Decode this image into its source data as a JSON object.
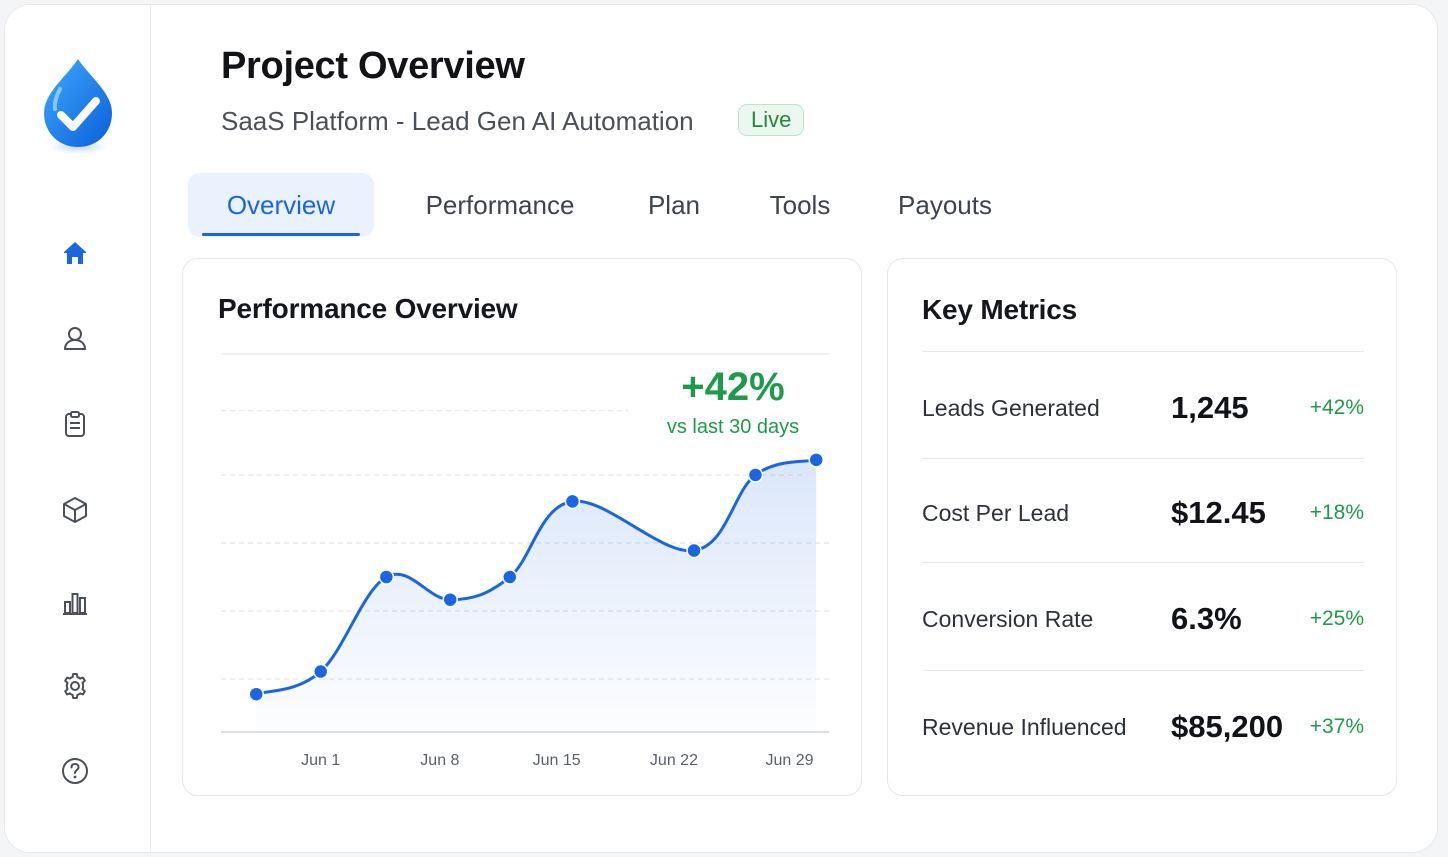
{
  "header": {
    "title": "Project Overview",
    "subtitle": "SaaS Platform - Lead Gen AI Automation",
    "status_badge": "Live"
  },
  "sidebar": {
    "items": [
      {
        "name": "home",
        "icon": "home-icon",
        "active": true
      },
      {
        "name": "profile",
        "icon": "user-icon",
        "active": false
      },
      {
        "name": "tasks",
        "icon": "clipboard-icon",
        "active": false
      },
      {
        "name": "products",
        "icon": "box-icon",
        "active": false
      },
      {
        "name": "analytics",
        "icon": "bar-chart-icon",
        "active": false
      },
      {
        "name": "settings",
        "icon": "gear-icon",
        "active": false
      },
      {
        "name": "help",
        "icon": "help-icon",
        "active": false
      }
    ]
  },
  "tabs": [
    {
      "label": "Overview",
      "active": true
    },
    {
      "label": "Performance",
      "active": false
    },
    {
      "label": "Plan",
      "active": false
    },
    {
      "label": "Tools",
      "active": false
    },
    {
      "label": "Payouts",
      "active": false
    }
  ],
  "performance_card": {
    "title": "Performance Overview",
    "delta_value": "+42%",
    "delta_caption": "vs last 30 days"
  },
  "chart_data": {
    "type": "area",
    "x": [
      "Jun 1 (start)",
      "Jun 1",
      "~Jun 6",
      "~Jun 8",
      "~Jun 11",
      "Jun 15",
      "Jun 22",
      "~Jun 25",
      "Jun 29"
    ],
    "values": [
      10,
      16,
      41,
      35,
      41,
      61,
      48,
      68,
      72
    ],
    "tick_labels": [
      "Jun 1",
      "Jun 8",
      "Jun 15",
      "Jun 22",
      "Jun 29"
    ],
    "ylim": [
      0,
      100
    ],
    "grid": true,
    "xlabel": "",
    "ylabel": "",
    "title": ""
  },
  "metrics_card": {
    "title": "Key Metrics",
    "rows": [
      {
        "label": "Leads Generated",
        "value": "1,245",
        "change": "+42%"
      },
      {
        "label": "Cost Per Lead",
        "value": "$12.45",
        "change": "+18%"
      },
      {
        "label": "Conversion Rate",
        "value": "6.3%",
        "change": "+25%"
      },
      {
        "label": "Revenue Influenced",
        "value": "$85,200",
        "change": "+37%"
      }
    ]
  },
  "colors": {
    "accent": "#1a66e0",
    "positive": "#1f9a4a",
    "badge_bg": "#ecf8ef"
  }
}
